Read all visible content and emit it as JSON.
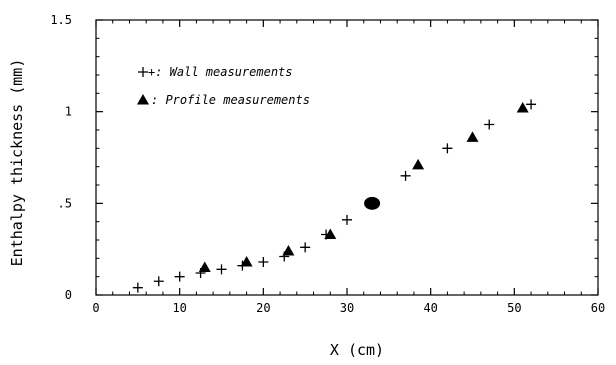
{
  "chart_data": {
    "type": "scatter",
    "title": "",
    "xlabel": "X (cm)",
    "ylabel": "Enthalpy thickness (mm)",
    "xlim": [
      0,
      60
    ],
    "ylim": [
      0,
      1.5
    ],
    "xticks": [
      0,
      10,
      20,
      30,
      40,
      50,
      60
    ],
    "xtick_labels": [
      "0",
      "10",
      "20",
      "30",
      "40",
      "50",
      "60"
    ],
    "yticks": [
      0,
      0.5,
      1,
      1.5
    ],
    "ytick_labels": [
      "0",
      ".5",
      "1",
      "1.5"
    ],
    "grid": false,
    "legend_position": "top-left",
    "series": [
      {
        "name": "Wall measurements",
        "legend_label": "+: Wall measurements",
        "marker": "plus",
        "points": [
          [
            5,
            0.04
          ],
          [
            7.5,
            0.075
          ],
          [
            10,
            0.1
          ],
          [
            12.5,
            0.12
          ],
          [
            15,
            0.14
          ],
          [
            17.5,
            0.16
          ],
          [
            20,
            0.18
          ],
          [
            22.5,
            0.21
          ],
          [
            25,
            0.26
          ],
          [
            27.5,
            0.33
          ],
          [
            30,
            0.41
          ],
          [
            37,
            0.65
          ],
          [
            42,
            0.8
          ],
          [
            47,
            0.93
          ],
          [
            52,
            1.04
          ]
        ]
      },
      {
        "name": "Profile measurements",
        "legend_label": ": Profile measurements",
        "marker": "triangle",
        "points": [
          [
            13,
            0.15
          ],
          [
            18,
            0.18
          ],
          [
            23,
            0.24
          ],
          [
            28,
            0.33
          ],
          [
            38.5,
            0.71
          ],
          [
            45,
            0.86
          ],
          [
            51,
            1.02
          ]
        ]
      },
      {
        "name": "",
        "marker": "circle",
        "points": [
          [
            33,
            0.5
          ]
        ]
      }
    ]
  }
}
